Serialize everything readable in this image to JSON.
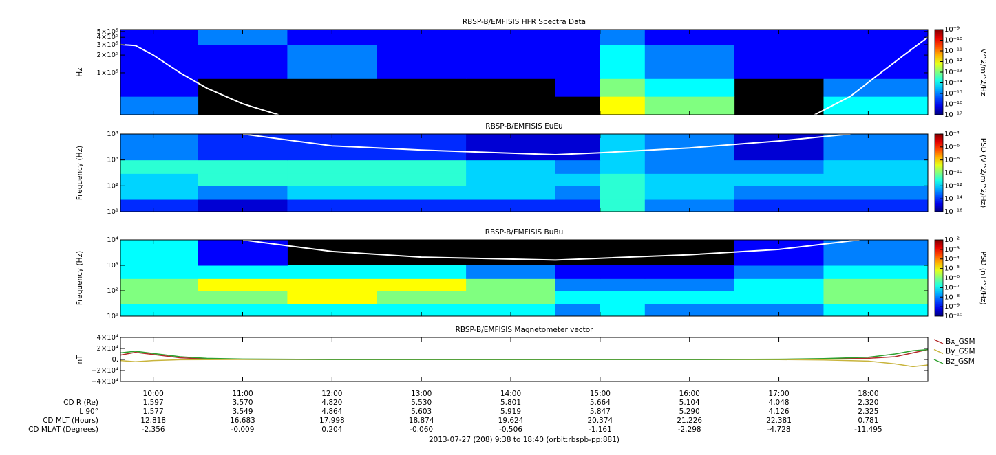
{
  "chart_data": [
    {
      "type": "spectrogram",
      "title": "RBSP-B/EMFISIS  HFR Spectra Data",
      "ylabel": "Hz",
      "yscale": "log",
      "xlim": [
        9.633,
        18.667
      ],
      "ylim": [
        19500,
        540000
      ],
      "yticks": [
        {
          "value": 100000,
          "label": "1×10⁵"
        },
        {
          "value": 200000,
          "label": "2×10⁵"
        },
        {
          "value": 300000,
          "label": "3×10⁵"
        },
        {
          "value": 400000,
          "label": "4×10⁵"
        },
        {
          "value": 500000,
          "label": "5×10⁵"
        }
      ],
      "zlabel": "V^2/m^2/Hz",
      "zlim": [
        1e-17,
        1e-09
      ],
      "zticks": [
        {
          "value": 1e-17,
          "label": "10⁻¹⁷"
        },
        {
          "value": 1e-16,
          "label": "10⁻¹⁶"
        },
        {
          "value": 1e-15,
          "label": "10⁻¹⁵"
        },
        {
          "value": 1e-14,
          "label": "10⁻¹⁴"
        },
        {
          "value": 1e-13,
          "label": "10⁻¹³"
        },
        {
          "value": 1e-12,
          "label": "10⁻¹²"
        },
        {
          "value": 1e-11,
          "label": "10⁻¹¹"
        },
        {
          "value": 1e-10,
          "label": "10⁻¹⁰"
        },
        {
          "value": 1e-09,
          "label": "10⁻⁹"
        }
      ],
      "time_bins": [
        9.633,
        10.5,
        11.5,
        12.5,
        13.5,
        14.5,
        15.0,
        15.5,
        16.5,
        17.5,
        18.667
      ],
      "freq_bins": [
        19500,
        40000,
        80000,
        150000,
        300000,
        540000
      ],
      "z": [
        [
          1e-15,
          null,
          null,
          null,
          null,
          null,
          1e-12,
          1e-13,
          null,
          1e-14
        ],
        [
          1e-16,
          null,
          null,
          null,
          null,
          1e-16,
          1e-13,
          1e-14,
          null,
          1e-15
        ],
        [
          1e-16,
          1e-16,
          1e-15,
          1e-16,
          1e-16,
          1e-16,
          1e-14,
          1e-15,
          1e-16,
          1e-16
        ],
        [
          1e-16,
          1e-16,
          1e-15,
          1e-16,
          1e-16,
          1e-16,
          1e-14,
          1e-15,
          1e-16,
          1e-16
        ],
        [
          1e-16,
          1e-15,
          1e-16,
          1e-16,
          1e-16,
          1e-16,
          1e-15,
          1e-16,
          1e-16,
          1e-16
        ]
      ],
      "line": {
        "color": "#ffffff",
        "x": [
          9.633,
          9.8,
          10,
          10.3,
          10.6,
          11,
          11.4,
          14,
          17.4,
          17.8,
          18.1,
          18.4,
          18.667
        ],
        "values": [
          300000,
          290000,
          200000,
          100000,
          55000,
          30000,
          19500,
          null,
          19500,
          40000,
          90000,
          200000,
          400000
        ]
      }
    },
    {
      "type": "spectrogram",
      "title": "RBSP-B/EMFISIS  EuEu",
      "ylabel": "Frequency (Hz)",
      "yscale": "log",
      "xlim": [
        9.633,
        18.667
      ],
      "ylim": [
        10,
        10000
      ],
      "yticks": [
        {
          "value": 10,
          "label": "10¹"
        },
        {
          "value": 100,
          "label": "10²"
        },
        {
          "value": 1000,
          "label": "10³"
        },
        {
          "value": 10000,
          "label": "10⁴"
        }
      ],
      "zlabel": "PSD (V^2/m^2/Hz)",
      "zlim": [
        1e-16,
        0.0001
      ],
      "zticks": [
        {
          "value": 1e-16,
          "label": "10⁻¹⁶"
        },
        {
          "value": 1e-14,
          "label": "10⁻¹⁴"
        },
        {
          "value": 1e-12,
          "label": "10⁻¹²"
        },
        {
          "value": 1e-10,
          "label": "10⁻¹⁰"
        },
        {
          "value": 1e-08,
          "label": "10⁻⁸"
        },
        {
          "value": 1e-06,
          "label": "10⁻⁶"
        },
        {
          "value": 0.0001,
          "label": "10⁻⁴"
        }
      ],
      "time_bins": [
        9.633,
        10.5,
        11.5,
        12.5,
        13.5,
        14.5,
        15.0,
        15.5,
        16.5,
        17.5,
        18.667
      ],
      "freq_bins": [
        10,
        30,
        100,
        300,
        1000,
        10000
      ],
      "z": [
        [
          1e-14,
          1e-15,
          1e-14,
          1e-14,
          1e-14,
          1e-14,
          1e-11,
          1e-13,
          1e-14,
          1e-14
        ],
        [
          1e-12,
          1e-13,
          1e-12,
          1e-12,
          1e-12,
          1e-13,
          1e-11,
          1e-12,
          1e-13,
          1e-13
        ],
        [
          1e-12,
          1e-11,
          1e-11,
          1e-11,
          1e-12,
          1e-12,
          1e-11,
          1e-12,
          1e-12,
          1e-12
        ],
        [
          1e-11,
          1e-11,
          1e-11,
          1e-11,
          1e-12,
          1e-13,
          1e-12,
          1e-13,
          1e-13,
          1e-12
        ],
        [
          1e-13,
          1e-14,
          1e-14,
          1e-14,
          1e-15,
          1e-15,
          1e-12,
          1e-13,
          1e-15,
          1e-13
        ]
      ],
      "line": {
        "color": "#ffffff",
        "x": [
          11.0,
          12.0,
          13.0,
          14.5,
          15.0,
          16.0,
          17.0,
          17.8
        ],
        "values": [
          10000,
          3500,
          2400,
          1600,
          1900,
          2900,
          5400,
          10000
        ]
      }
    },
    {
      "type": "spectrogram",
      "title": "RBSP-B/EMFISIS  BuBu",
      "ylabel": "Frequency (Hz)",
      "yscale": "log",
      "xlim": [
        9.633,
        18.667
      ],
      "ylim": [
        10,
        10000
      ],
      "yticks": [
        {
          "value": 10,
          "label": "10¹"
        },
        {
          "value": 100,
          "label": "10²"
        },
        {
          "value": 1000,
          "label": "10³"
        },
        {
          "value": 10000,
          "label": "10⁴"
        }
      ],
      "zlabel": "PSD (nT^2/Hz)",
      "zlim": [
        1e-10,
        0.01
      ],
      "zticks": [
        {
          "value": 1e-10,
          "label": "10⁻¹⁰"
        },
        {
          "value": 1e-09,
          "label": "10⁻⁹"
        },
        {
          "value": 1e-08,
          "label": "10⁻⁸"
        },
        {
          "value": 1e-07,
          "label": "10⁻⁷"
        },
        {
          "value": 1e-06,
          "label": "10⁻⁶"
        },
        {
          "value": 1e-05,
          "label": "10⁻⁵"
        },
        {
          "value": 0.0001,
          "label": "10⁻⁴"
        },
        {
          "value": 0.001,
          "label": "10⁻³"
        },
        {
          "value": 0.01,
          "label": "10⁻²"
        }
      ],
      "time_bins": [
        9.633,
        10.5,
        11.5,
        12.5,
        13.5,
        14.5,
        15.0,
        15.5,
        16.5,
        17.5,
        18.667
      ],
      "freq_bins": [
        10,
        30,
        100,
        300,
        1000,
        10000
      ],
      "z": [
        [
          1e-07,
          1e-07,
          1e-07,
          1e-07,
          1e-07,
          1e-08,
          1e-07,
          1e-08,
          1e-08,
          1e-07
        ],
        [
          1e-06,
          1e-06,
          1e-05,
          1e-06,
          1e-06,
          1e-07,
          1e-07,
          1e-07,
          1e-07,
          1e-06
        ],
        [
          1e-06,
          1e-05,
          1e-05,
          1e-05,
          1e-06,
          1e-08,
          1e-08,
          1e-08,
          1e-07,
          1e-06
        ],
        [
          1e-07,
          1e-07,
          1e-07,
          1e-07,
          1e-08,
          1e-09,
          1e-09,
          1e-09,
          1e-08,
          1e-07
        ],
        [
          1e-07,
          1e-09,
          null,
          null,
          null,
          null,
          null,
          null,
          1e-09,
          1e-08
        ]
      ],
      "line": {
        "color": "#ffffff",
        "x": [
          11.0,
          12.0,
          13.0,
          14.5,
          15.0,
          16.0,
          17.0,
          17.9
        ],
        "values": [
          10000,
          3500,
          2100,
          1600,
          1900,
          2600,
          4200,
          10000
        ]
      }
    },
    {
      "type": "line",
      "title": "RBSP-B/EMFISIS  Magnetometer vector",
      "ylabel": "nT",
      "xlabel": "2013-07-27 (208) 9:38 to 18:40 (orbit:rbspb-pp:881)",
      "xlim": [
        9.633,
        18.667
      ],
      "ylim": [
        -40000,
        40000
      ],
      "xticks": [
        {
          "value": 10,
          "label": "10:00"
        },
        {
          "value": 11,
          "label": "11:00"
        },
        {
          "value": 12,
          "label": "12:00"
        },
        {
          "value": 13,
          "label": "13:00"
        },
        {
          "value": 14,
          "label": "14:00"
        },
        {
          "value": 15,
          "label": "15:00"
        },
        {
          "value": 16,
          "label": "16:00"
        },
        {
          "value": 17,
          "label": "17:00"
        },
        {
          "value": 18,
          "label": "18:00"
        }
      ],
      "yticks": [
        {
          "value": -40000,
          "label": "−4×10⁴"
        },
        {
          "value": -20000,
          "label": "−2×10⁴"
        },
        {
          "value": 0,
          "label": "0."
        },
        {
          "value": 20000,
          "label": "2×10⁴"
        },
        {
          "value": 40000,
          "label": "4×10⁴"
        }
      ],
      "x": [
        9.633,
        9.8,
        10,
        10.3,
        10.6,
        11,
        12,
        14,
        16,
        17,
        17.5,
        18,
        18.3,
        18.5,
        18.667
      ],
      "series": [
        {
          "name": "Bx_GSM",
          "color": "#b22a2a",
          "values": [
            8000,
            13000,
            9000,
            3000,
            1000,
            300,
            0,
            0,
            0,
            300,
            800,
            2000,
            5000,
            12000,
            18000
          ]
        },
        {
          "name": "By_GSM",
          "color": "#c8b43c",
          "values": [
            -2000,
            -4000,
            -2000,
            -500,
            -200,
            0,
            0,
            0,
            0,
            -300,
            -1000,
            -3000,
            -8000,
            -13000,
            -10000
          ]
        },
        {
          "name": "Bz_GSM",
          "color": "#2ea02e",
          "values": [
            12000,
            15000,
            11000,
            5000,
            2000,
            800,
            0,
            0,
            0,
            500,
            1500,
            4000,
            10000,
            16000,
            18000
          ]
        }
      ],
      "ephemeris": [
        {
          "label": "CD R (Re)",
          "values": [
            "1.597",
            "3.570",
            "4.820",
            "5.530",
            "5.801",
            "5.664",
            "5.104",
            "4.048",
            "2.320"
          ]
        },
        {
          "label": "L 90°",
          "values": [
            "1.577",
            "3.549",
            "4.864",
            "5.603",
            "5.919",
            "5.847",
            "5.290",
            "4.126",
            "2.325"
          ]
        },
        {
          "label": "CD MLT (Hours)",
          "values": [
            "12.818",
            "16.683",
            "17.998",
            "18.874",
            "19.624",
            "20.374",
            "21.226",
            "22.381",
            "0.781"
          ]
        },
        {
          "label": "CD MLAT (Degrees)",
          "values": [
            "-2.356",
            "-0.009",
            "0.204",
            "-0.060",
            "-0.506",
            "-1.161",
            "-2.298",
            "-4.728",
            "-11.495"
          ]
        }
      ]
    }
  ]
}
